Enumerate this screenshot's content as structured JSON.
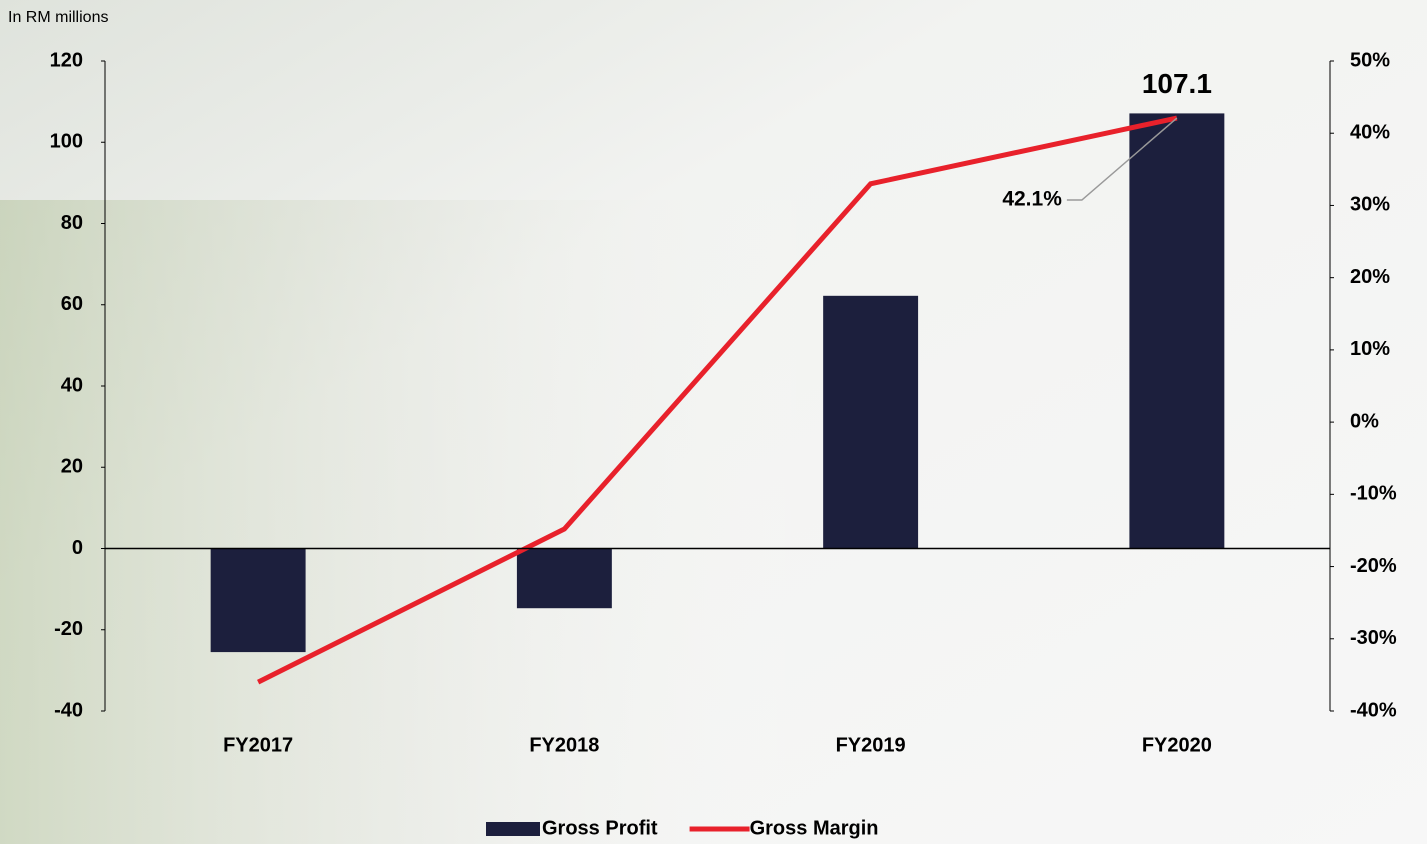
{
  "chart_data": {
    "type": "bar-line",
    "y_label": "In RM millions",
    "categories": [
      "FY2017",
      "FY2018",
      "FY2019",
      "FY2020"
    ],
    "series": [
      {
        "name": "Gross Profit",
        "type": "bar",
        "color": "#1c1f3d",
        "values": [
          -25.5,
          -14.7,
          62.2,
          107.1
        ],
        "value_labels": [
          null,
          null,
          null,
          "107.1"
        ]
      },
      {
        "name": "Gross Margin",
        "type": "line",
        "axis": "y2",
        "color": "#e8212b",
        "values": [
          -36,
          -14.8,
          33,
          42.1
        ],
        "value_labels": [
          null,
          null,
          null,
          "42.1%"
        ]
      }
    ],
    "ylim": [
      -40,
      120
    ],
    "yticks": [
      -40,
      -20,
      0,
      20,
      40,
      60,
      80,
      100,
      120
    ],
    "y2lim": [
      -40,
      50
    ],
    "y2ticks": [
      {
        "value": -40,
        "label": "-40%"
      },
      {
        "value": -30,
        "label": "-30%"
      },
      {
        "value": -20,
        "label": "-20%"
      },
      {
        "value": -10,
        "label": "-10%"
      },
      {
        "value": 0,
        "label": "0%"
      },
      {
        "value": 10,
        "label": "10%"
      },
      {
        "value": 20,
        "label": "20%"
      },
      {
        "value": 30,
        "label": "30%"
      },
      {
        "value": 40,
        "label": "40%"
      },
      {
        "value": 50,
        "label": "50%"
      }
    ],
    "legend": "bottom"
  }
}
